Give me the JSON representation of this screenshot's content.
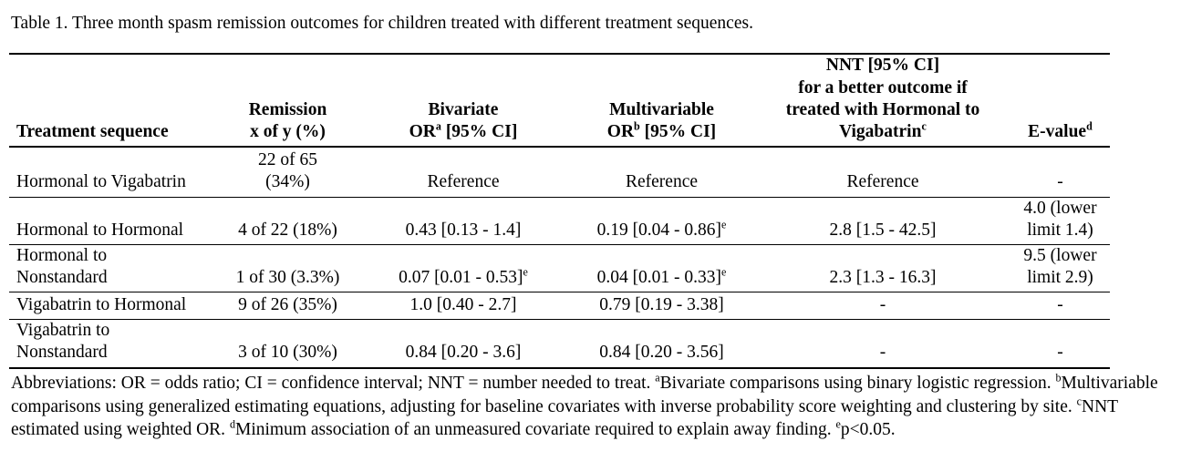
{
  "title": "Table 1. Three month spasm remission outcomes for children treated with different treatment sequences.",
  "colors": {
    "text": "#000000",
    "background": "#ffffff",
    "rule": "#000000"
  },
  "table": {
    "columns": [
      {
        "key": "sequence",
        "header": [
          {
            "t": "Treatment sequence"
          }
        ]
      },
      {
        "key": "remission",
        "header": [
          {
            "t": "Remission"
          },
          {
            "br": true
          },
          {
            "t": "x of y (%)"
          }
        ]
      },
      {
        "key": "bivariate",
        "header": [
          {
            "t": "Bivariate"
          },
          {
            "br": true
          },
          {
            "t": "OR"
          },
          {
            "s": "a"
          },
          {
            "t": " [95% CI]"
          }
        ]
      },
      {
        "key": "multivariable",
        "header": [
          {
            "t": "Multivariable"
          },
          {
            "br": true
          },
          {
            "t": "OR"
          },
          {
            "s": "b"
          },
          {
            "t": " [95% CI]"
          }
        ]
      },
      {
        "key": "nnt",
        "header": [
          {
            "t": "NNT [95% CI]"
          },
          {
            "br": true
          },
          {
            "t": "for a better outcome if"
          },
          {
            "br": true
          },
          {
            "t": "treated with Hormonal to"
          },
          {
            "br": true
          },
          {
            "t": "Vigabatrin"
          },
          {
            "s": "c"
          }
        ]
      },
      {
        "key": "evalue",
        "header": [
          {
            "t": "E-value"
          },
          {
            "s": "d"
          }
        ]
      }
    ],
    "rows": [
      {
        "cells": [
          [
            {
              "t": "Hormonal to Vigabatrin"
            }
          ],
          [
            {
              "t": "22 of 65"
            },
            {
              "br": true
            },
            {
              "t": "(34%)"
            }
          ],
          [
            {
              "t": "Reference"
            }
          ],
          [
            {
              "t": "Reference"
            }
          ],
          [
            {
              "t": "Reference"
            }
          ],
          [
            {
              "t": "-"
            }
          ]
        ]
      },
      {
        "cells": [
          [
            {
              "t": "Hormonal to Hormonal"
            }
          ],
          [
            {
              "t": "4 of 22 (18%)"
            }
          ],
          [
            {
              "t": "0.43 [0.13 - 1.4]"
            }
          ],
          [
            {
              "t": "0.19 [0.04 - 0.86]"
            },
            {
              "s": "e"
            }
          ],
          [
            {
              "t": "2.8 [1.5 - 42.5]"
            }
          ],
          [
            {
              "t": "4.0 (lower"
            },
            {
              "br": true
            },
            {
              "t": "limit 1.4)"
            }
          ]
        ]
      },
      {
        "cells": [
          [
            {
              "t": "Hormonal to"
            },
            {
              "br": true
            },
            {
              "t": "Nonstandard"
            }
          ],
          [
            {
              "t": "1 of 30 (3.3%)"
            }
          ],
          [
            {
              "t": "0.07 [0.01 - 0.53]"
            },
            {
              "s": "e"
            }
          ],
          [
            {
              "t": "0.04 [0.01 - 0.33]"
            },
            {
              "s": "e"
            }
          ],
          [
            {
              "t": "2.3 [1.3 - 16.3]"
            }
          ],
          [
            {
              "t": "9.5 (lower"
            },
            {
              "br": true
            },
            {
              "t": "limit 2.9)"
            }
          ]
        ]
      },
      {
        "cells": [
          [
            {
              "t": "Vigabatrin to Hormonal"
            }
          ],
          [
            {
              "t": "9 of 26 (35%)"
            }
          ],
          [
            {
              "t": "1.0 [0.40 - 2.7]"
            }
          ],
          [
            {
              "t": "0.79 [0.19 - 3.38]"
            }
          ],
          [
            {
              "t": "-"
            }
          ],
          [
            {
              "t": "-"
            }
          ]
        ]
      },
      {
        "cells": [
          [
            {
              "t": "Vigabatrin to"
            },
            {
              "br": true
            },
            {
              "t": "Nonstandard"
            }
          ],
          [
            {
              "t": "3 of 10 (30%)"
            }
          ],
          [
            {
              "t": "0.84 [0.20 - 3.6]"
            }
          ],
          [
            {
              "t": "0.84 [0.20 - 3.56]"
            }
          ],
          [
            {
              "t": "-"
            }
          ],
          [
            {
              "t": "-"
            }
          ]
        ]
      }
    ]
  },
  "footnote": {
    "segments": [
      {
        "t": "Abbreviations: OR = odds ratio; CI = confidence interval; NNT = number needed to treat. "
      },
      {
        "s": "a"
      },
      {
        "t": "Bivariate comparisons using binary logistic regression. "
      },
      {
        "s": "b"
      },
      {
        "t": "Multivariable comparisons using generalized estimating equations, adjusting for baseline covariates with inverse probability score weighting and clustering by site. "
      },
      {
        "s": "c"
      },
      {
        "t": "NNT estimated using weighted OR. "
      },
      {
        "s": "d"
      },
      {
        "t": "Minimum association of an unmeasured covariate required to explain away finding. "
      },
      {
        "s": "e"
      },
      {
        "t": "p<0.05."
      }
    ]
  }
}
